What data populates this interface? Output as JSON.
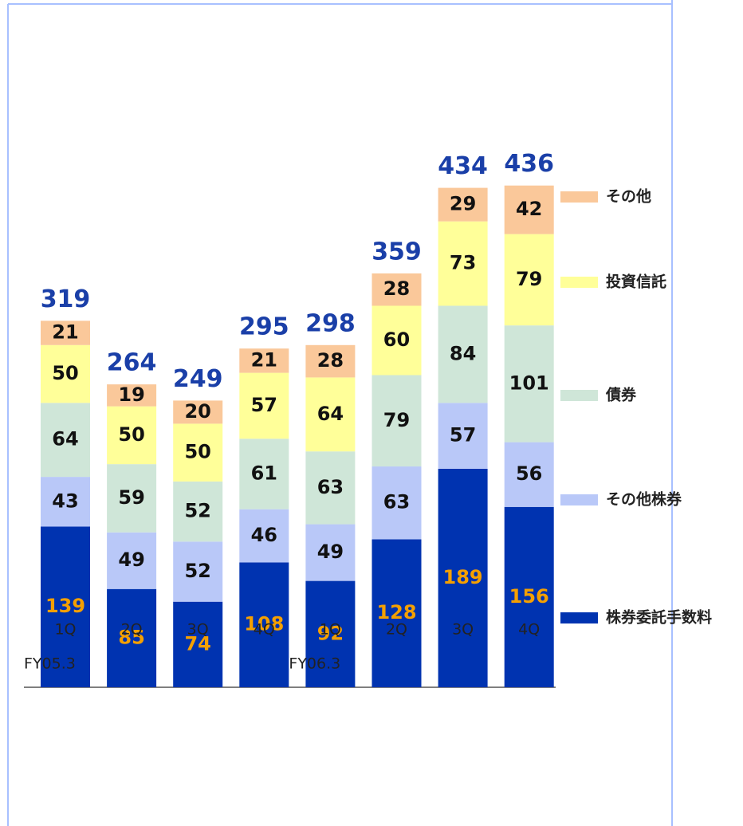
{
  "chart_data": {
    "type": "stacked_bar",
    "categories": [
      "1Q",
      "2Q",
      "3Q",
      "4Q",
      "1Q",
      "2Q",
      "3Q",
      "4Q"
    ],
    "groups": [
      "FY05.3",
      "FY06.3"
    ],
    "series": [
      {
        "name": "株券委託手数料",
        "color": "#0033b0",
        "label_color": "#f5a000",
        "values": [
          139,
          85,
          74,
          108,
          92,
          128,
          189,
          156
        ]
      },
      {
        "name": "その他株券",
        "color": "#b9c8f8",
        "label_color": "#111111",
        "values": [
          43,
          49,
          52,
          46,
          49,
          63,
          57,
          56
        ]
      },
      {
        "name": "債券",
        "color": "#cfe6d8",
        "label_color": "#111111",
        "values": [
          64,
          59,
          52,
          61,
          63,
          79,
          84,
          101
        ]
      },
      {
        "name": "投資信託",
        "color": "#ffff99",
        "label_color": "#111111",
        "values": [
          50,
          50,
          50,
          57,
          64,
          60,
          73,
          79
        ]
      },
      {
        "name": "その他",
        "color": "#fac89a",
        "label_color": "#111111",
        "values": [
          21,
          19,
          20,
          21,
          28,
          28,
          29,
          42
        ]
      }
    ],
    "totals": [
      319,
      264,
      249,
      295,
      298,
      359,
      434,
      436
    ],
    "total_color": "#1a3fa8"
  }
}
